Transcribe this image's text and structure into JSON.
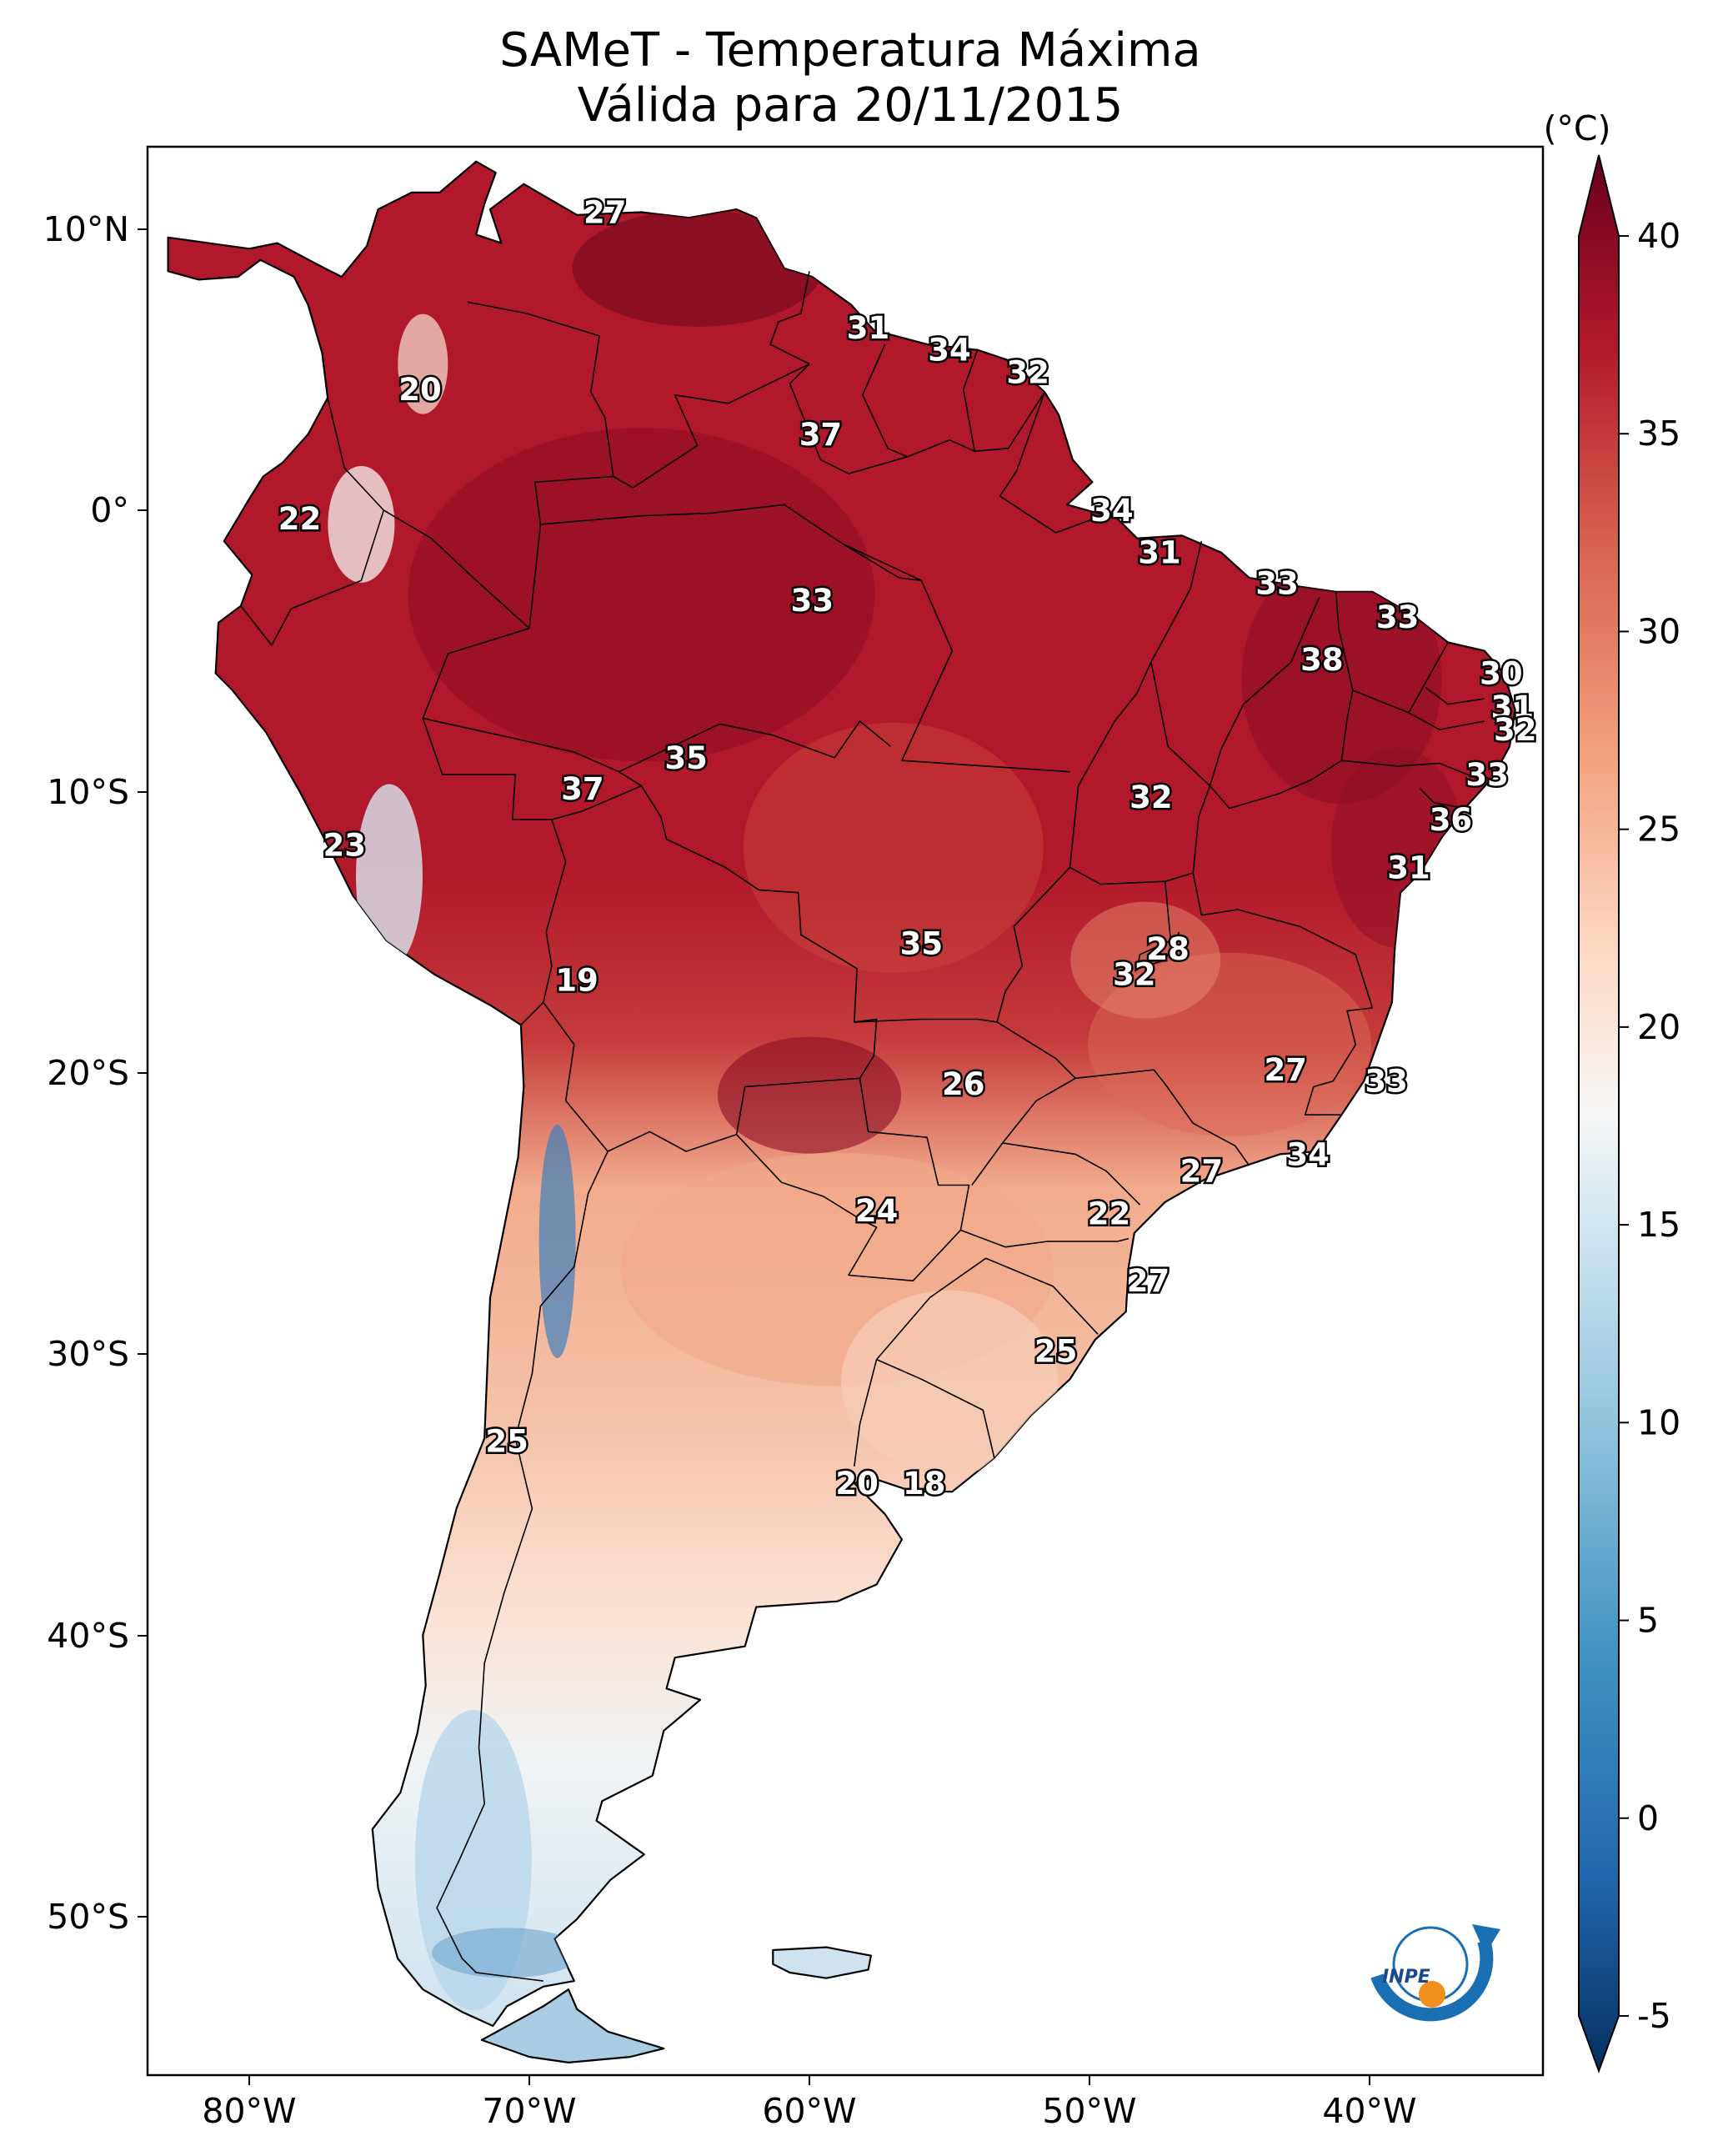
{
  "title": {
    "line1": "SAMeT - Temperatura Máxima",
    "line2": "Válida para 20/11/2015"
  },
  "axes": {
    "lat_ticks": [
      "10°N",
      "0°",
      "10°S",
      "20°S",
      "30°S",
      "40°S",
      "50°S"
    ],
    "lon_ticks": [
      "80°W",
      "70°W",
      "60°W",
      "50°W",
      "40°W"
    ]
  },
  "colorbar": {
    "unit": "(°C)",
    "ticks": [
      "40",
      "35",
      "30",
      "25",
      "20",
      "15",
      "10",
      "5",
      "0",
      "-5"
    ],
    "range": [
      -5,
      40
    ],
    "colormap": "RdBu_r"
  },
  "temperature_labels": [
    {
      "value": "27",
      "lon": -67.3,
      "lat": 10.6
    },
    {
      "value": "31",
      "lon": -57.9,
      "lat": 6.5
    },
    {
      "value": "34",
      "lon": -55.0,
      "lat": 5.7
    },
    {
      "value": "32",
      "lon": -52.2,
      "lat": 4.9
    },
    {
      "value": "20",
      "lon": -73.9,
      "lat": 4.3
    },
    {
      "value": "37",
      "lon": -59.6,
      "lat": 2.7
    },
    {
      "value": "34",
      "lon": -49.2,
      "lat": 0.0
    },
    {
      "value": "22",
      "lon": -78.2,
      "lat": -0.3
    },
    {
      "value": "31",
      "lon": -47.5,
      "lat": -1.5
    },
    {
      "value": "33",
      "lon": -59.9,
      "lat": -3.2
    },
    {
      "value": "33",
      "lon": -43.3,
      "lat": -2.6
    },
    {
      "value": "33",
      "lon": -39.0,
      "lat": -3.8
    },
    {
      "value": "38",
      "lon": -41.7,
      "lat": -5.3
    },
    {
      "value": "30",
      "lon": -35.3,
      "lat": -5.8
    },
    {
      "value": "31",
      "lon": -34.9,
      "lat": -7.0
    },
    {
      "value": "32",
      "lon": -34.8,
      "lat": -7.8
    },
    {
      "value": "35",
      "lon": -64.4,
      "lat": -8.8
    },
    {
      "value": "33",
      "lon": -35.8,
      "lat": -9.4
    },
    {
      "value": "37",
      "lon": -68.1,
      "lat": -9.9
    },
    {
      "value": "32",
      "lon": -47.8,
      "lat": -10.2
    },
    {
      "value": "36",
      "lon": -37.1,
      "lat": -11.0
    },
    {
      "value": "23",
      "lon": -76.6,
      "lat": -11.9
    },
    {
      "value": "31",
      "lon": -38.6,
      "lat": -12.7
    },
    {
      "value": "35",
      "lon": -56.0,
      "lat": -15.4
    },
    {
      "value": "28",
      "lon": -47.2,
      "lat": -15.6
    },
    {
      "value": "32",
      "lon": -48.4,
      "lat": -16.5
    },
    {
      "value": "19",
      "lon": -68.3,
      "lat": -16.7
    },
    {
      "value": "27",
      "lon": -43.0,
      "lat": -19.9
    },
    {
      "value": "33",
      "lon": -39.4,
      "lat": -20.3
    },
    {
      "value": "26",
      "lon": -54.5,
      "lat": -20.4
    },
    {
      "value": "34",
      "lon": -42.2,
      "lat": -22.9
    },
    {
      "value": "27",
      "lon": -46.0,
      "lat": -23.5
    },
    {
      "value": "24",
      "lon": -57.6,
      "lat": -24.9
    },
    {
      "value": "22",
      "lon": -49.3,
      "lat": -25.0
    },
    {
      "value": "27",
      "lon": -47.9,
      "lat": -27.4
    },
    {
      "value": "25",
      "lon": -51.2,
      "lat": -29.9
    },
    {
      "value": "25",
      "lon": -70.8,
      "lat": -33.1
    },
    {
      "value": "20",
      "lon": -58.3,
      "lat": -34.6
    },
    {
      "value": "18",
      "lon": -55.9,
      "lat": -34.6
    }
  ],
  "logo": {
    "text": "INPE"
  }
}
